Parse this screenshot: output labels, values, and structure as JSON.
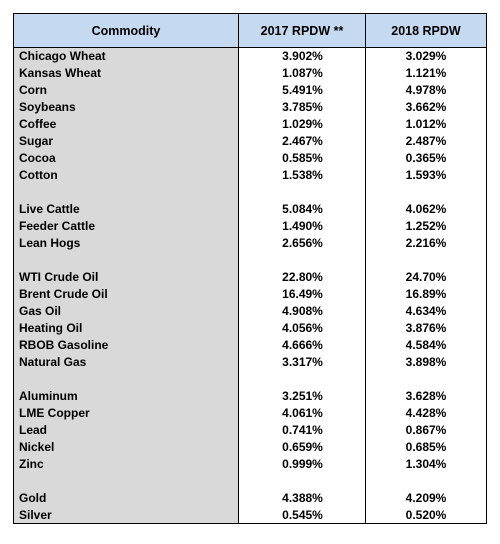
{
  "headers": [
    "Commodity",
    "2017 RPDW **",
    "2018 RPDW"
  ],
  "groups": [
    [
      [
        "Chicago Wheat",
        "3.902%",
        "3.029%"
      ],
      [
        "Kansas Wheat",
        "1.087%",
        "1.121%"
      ],
      [
        "Corn",
        "5.491%",
        "4.978%"
      ],
      [
        "Soybeans",
        "3.785%",
        "3.662%"
      ],
      [
        "Coffee",
        "1.029%",
        "1.012%"
      ],
      [
        "Sugar",
        "2.467%",
        "2.487%"
      ],
      [
        "Cocoa",
        "0.585%",
        "0.365%"
      ],
      [
        "Cotton",
        "1.538%",
        "1.593%"
      ]
    ],
    [
      [
        "Live Cattle",
        "5.084%",
        "4.062%"
      ],
      [
        "Feeder Cattle",
        "1.490%",
        "1.252%"
      ],
      [
        "Lean Hogs",
        "2.656%",
        "2.216%"
      ]
    ],
    [
      [
        "WTI Crude Oil",
        "22.80%",
        "24.70%"
      ],
      [
        "Brent Crude Oil",
        "16.49%",
        "16.89%"
      ],
      [
        "Gas Oil",
        "4.908%",
        "4.634%"
      ],
      [
        "Heating Oil",
        "4.056%",
        "3.876%"
      ],
      [
        "RBOB Gasoline",
        "4.666%",
        "4.584%"
      ],
      [
        "Natural Gas",
        "3.317%",
        "3.898%"
      ]
    ],
    [
      [
        "Aluminum",
        "3.251%",
        "3.628%"
      ],
      [
        "LME Copper",
        "4.061%",
        "4.428%"
      ],
      [
        "Lead",
        "0.741%",
        "0.867%"
      ],
      [
        "Nickel",
        "0.659%",
        "0.685%"
      ],
      [
        "Zinc",
        "0.999%",
        "1.304%"
      ]
    ],
    [
      [
        "Gold",
        "4.388%",
        "4.209%"
      ],
      [
        "Silver",
        "0.545%",
        "0.520%"
      ]
    ]
  ]
}
